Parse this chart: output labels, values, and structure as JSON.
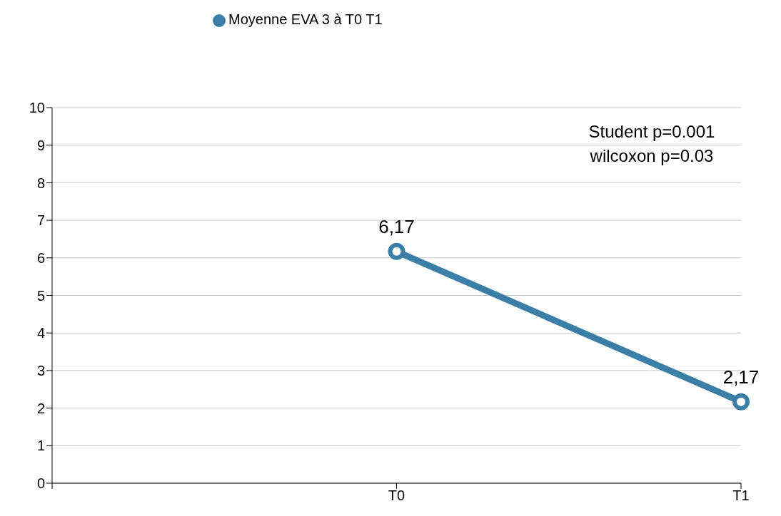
{
  "chart_data": {
    "type": "line",
    "categories": [
      null,
      "T0",
      "T1"
    ],
    "series": [
      {
        "name": "Moyenne EVA 3 à T0 T1",
        "color": "#3b7ea6",
        "values": [
          null,
          6.17,
          2.17
        ],
        "value_labels": [
          null,
          "6,17",
          "2,17"
        ]
      }
    ],
    "ylim": [
      0,
      10
    ],
    "yticks": [
      0,
      1,
      2,
      3,
      4,
      5,
      6,
      7,
      8,
      9,
      10
    ],
    "grid": "y",
    "legend": "top",
    "marker": "circle",
    "line_style": "solid",
    "annotations": [
      "Student p=0.001",
      "wilcoxon p=0.03"
    ]
  }
}
